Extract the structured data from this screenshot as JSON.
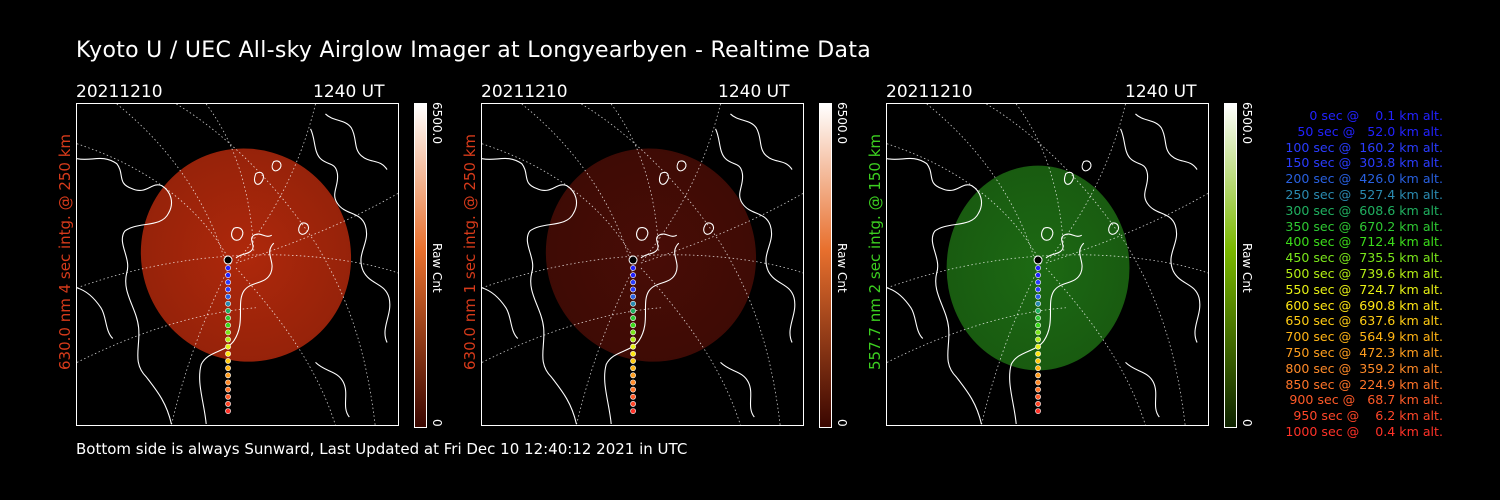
{
  "title": "Kyoto U / UEC All-sky Airglow Imager at Longyearbyen - Realtime Data",
  "footer": "Bottom side is always Sunward, Last Updated at Fri Dec 10 12:40:12 2021 in UTC",
  "panels": [
    {
      "date": "20211210",
      "time": "1240 UT",
      "ylabel": "630.0 nm 4 sec intg. @ 250 km",
      "label_color": "#d63a1a",
      "cbar_max": "6500.0",
      "cbar_label": "Raw Cnt",
      "cbar_min": "0",
      "image_color": "#b72a0c",
      "image_opacity": 0.95,
      "cbar_top": "#ffffff",
      "cbar_mid": "#e8702e",
      "cbar_bot": "#3a0600"
    },
    {
      "date": "20211210",
      "time": "1240 UT",
      "ylabel": "630.0 nm 1 sec intg. @ 250 km",
      "label_color": "#d63a1a",
      "cbar_max": "6500.0",
      "cbar_label": "Raw Cnt",
      "cbar_min": "0",
      "image_color": "#4c0d06",
      "image_opacity": 0.95,
      "cbar_top": "#ffffff",
      "cbar_mid": "#e8702e",
      "cbar_bot": "#3a0600"
    },
    {
      "date": "20211210",
      "time": "1240 UT",
      "ylabel": "557.7 nm 2 sec intg. @ 150 km",
      "label_color": "#3ccf20",
      "cbar_max": "6500.0",
      "cbar_label": "Raw Cnt",
      "cbar_min": "0",
      "image_color": "#1e6f14",
      "image_opacity": 0.95,
      "cbar_top": "#ffffff",
      "cbar_mid": "#7ab800",
      "cbar_bot": "#0e2200"
    }
  ],
  "legend": [
    {
      "text": "   0 sec @    0.1 km alt.",
      "color": "#2222ff"
    },
    {
      "text": "  50 sec @   52.0 km alt.",
      "color": "#2222ff"
    },
    {
      "text": " 100 sec @  160.2 km alt.",
      "color": "#2a3cff"
    },
    {
      "text": " 150 sec @  303.8 km alt.",
      "color": "#2a3cff"
    },
    {
      "text": " 200 sec @  426.0 km alt.",
      "color": "#2860e0"
    },
    {
      "text": " 250 sec @  527.4 km alt.",
      "color": "#2a8ab0"
    },
    {
      "text": " 300 sec @  608.6 km alt.",
      "color": "#20b060"
    },
    {
      "text": " 350 sec @  670.2 km alt.",
      "color": "#2ec832"
    },
    {
      "text": " 400 sec @  712.4 km alt.",
      "color": "#3cdc1a"
    },
    {
      "text": " 450 sec @  735.5 km alt.",
      "color": "#7ae61a"
    },
    {
      "text": " 500 sec @  739.6 km alt.",
      "color": "#b4ee14"
    },
    {
      "text": " 550 sec @  724.7 km alt.",
      "color": "#e6f014"
    },
    {
      "text": " 600 sec @  690.8 km alt.",
      "color": "#ffe614"
    },
    {
      "text": " 650 sec @  637.6 km alt.",
      "color": "#ffcc14"
    },
    {
      "text": " 700 sec @  564.9 km alt.",
      "color": "#ffb414"
    },
    {
      "text": " 750 sec @  472.3 km alt.",
      "color": "#ff9e1e"
    },
    {
      "text": " 800 sec @  359.2 km alt.",
      "color": "#ff8a28"
    },
    {
      "text": " 850 sec @  224.9 km alt.",
      "color": "#ff7428"
    },
    {
      "text": " 900 sec @   68.7 km alt.",
      "color": "#ff5a28"
    },
    {
      "text": " 950 sec @    6.2 km alt.",
      "color": "#ff4628"
    },
    {
      "text": "1000 sec @    0.4 km alt.",
      "color": "#ff3228"
    }
  ]
}
